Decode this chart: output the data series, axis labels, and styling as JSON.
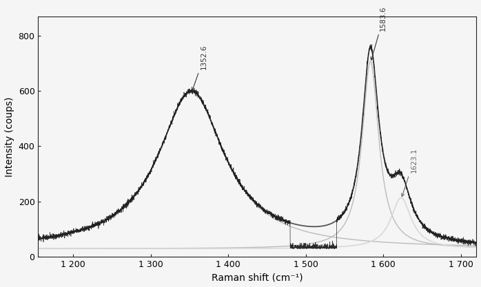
{
  "x_min": 1155,
  "x_max": 1720,
  "y_min": 0,
  "y_max": 870,
  "xticks": [
    1200,
    1300,
    1400,
    1500,
    1600,
    1700
  ],
  "xtick_labels": [
    "1 200",
    "1 300",
    "1 400",
    "1 500",
    "1 600",
    "1 700"
  ],
  "yticks": [
    0,
    200,
    400,
    600,
    800
  ],
  "xlabel": "Raman shift (cm⁻¹)",
  "ylabel": "Intensity (coups)",
  "peak_D_x": 1352.6,
  "peak_D_amp": 570,
  "peak_D_gamma": 52,
  "peak_D_label": "1352.6",
  "peak_G_x": 1583.6,
  "peak_G_amp": 680,
  "peak_G_gamma": 13,
  "peak_G_label": "1583.6",
  "peak_D2_x": 1623.1,
  "peak_D2_amp": 185,
  "peak_D2_gamma": 16,
  "peak_D2_label": "1623.1",
  "baseline": 28,
  "noise_amplitude": 5,
  "background_color": "#f5f5f5",
  "spectrum_color": "#1a1a1a",
  "fit_total_color": "#555555",
  "fit_ind_color": "#bbbbbb",
  "fit_D2_color": "#d8d8d8",
  "annotation_color": "#333333",
  "annotation_color_light": "#666666"
}
